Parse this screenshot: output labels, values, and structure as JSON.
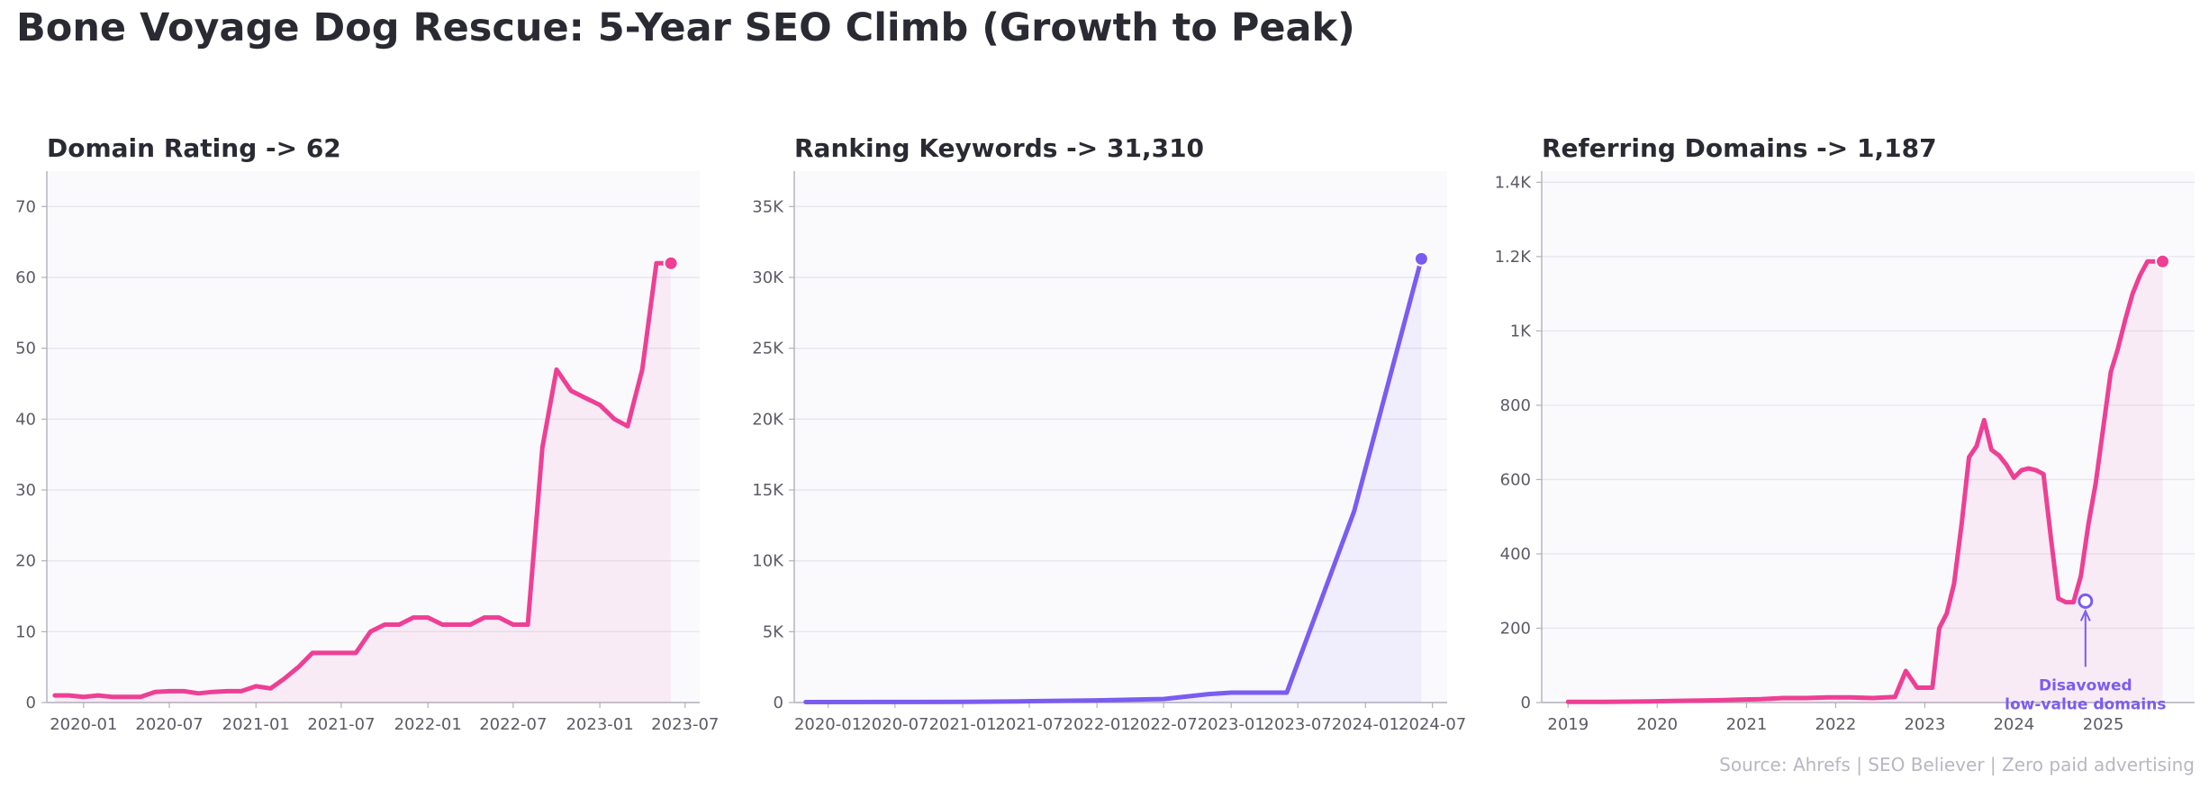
{
  "title": "Bone Voyage Dog Rescue: 5-Year SEO Climb (Growth to Peak)",
  "footer": "Source: Ahrefs  |  SEO Believer  |  Zero paid advertising",
  "colors": {
    "pink": "#ee3f95",
    "purple": "#7b5cf0",
    "panel_bg": "#fafafd",
    "grid": "#e6e6ee"
  },
  "chart_data": [
    {
      "type": "area",
      "title": "Domain Rating  ->  62",
      "color": "pink",
      "x_type": "date",
      "xlim": [
        "2019-10-15",
        "2023-08-01"
      ],
      "ylim": [
        0,
        75
      ],
      "xticks": [
        {
          "value": "2020-01-01",
          "label": "2020-01"
        },
        {
          "value": "2020-07-01",
          "label": "2020-07"
        },
        {
          "value": "2021-01-01",
          "label": "2021-01"
        },
        {
          "value": "2021-07-01",
          "label": "2021-07"
        },
        {
          "value": "2022-01-01",
          "label": "2022-01"
        },
        {
          "value": "2022-07-01",
          "label": "2022-07"
        },
        {
          "value": "2023-01-01",
          "label": "2023-01"
        },
        {
          "value": "2023-07-01",
          "label": "2023-07"
        }
      ],
      "yticks": [
        {
          "value": 0,
          "label": "0"
        },
        {
          "value": 10,
          "label": "10"
        },
        {
          "value": 20,
          "label": "20"
        },
        {
          "value": 30,
          "label": "30"
        },
        {
          "value": 40,
          "label": "40"
        },
        {
          "value": 50,
          "label": "50"
        },
        {
          "value": 60,
          "label": "60"
        },
        {
          "value": 70,
          "label": "70"
        }
      ],
      "x": [
        "2019-11-01",
        "2019-12-01",
        "2020-01-01",
        "2020-02-01",
        "2020-03-01",
        "2020-04-01",
        "2020-05-01",
        "2020-06-01",
        "2020-07-01",
        "2020-08-01",
        "2020-09-01",
        "2020-10-01",
        "2020-11-01",
        "2020-12-01",
        "2021-01-01",
        "2021-02-01",
        "2021-03-01",
        "2021-04-01",
        "2021-05-01",
        "2021-06-01",
        "2021-07-01",
        "2021-08-01",
        "2021-09-01",
        "2021-10-01",
        "2021-11-01",
        "2021-12-01",
        "2022-01-01",
        "2022-02-01",
        "2022-03-01",
        "2022-04-01",
        "2022-05-01",
        "2022-06-01",
        "2022-07-01",
        "2022-08-01",
        "2022-09-01",
        "2022-10-01",
        "2022-11-01",
        "2022-12-01",
        "2023-01-01",
        "2023-02-01",
        "2023-03-01",
        "2023-04-01",
        "2023-05-01",
        "2023-06-01"
      ],
      "y": [
        1,
        1,
        0.8,
        1,
        0.8,
        0.8,
        0.8,
        1.5,
        1.6,
        1.6,
        1.3,
        1.5,
        1.6,
        1.6,
        2.3,
        2,
        3.3,
        5,
        7,
        7,
        7,
        7,
        10,
        11,
        11,
        12,
        12,
        11,
        11,
        11,
        12,
        12,
        11,
        11,
        36,
        47,
        44,
        43,
        42,
        40,
        39,
        47,
        62,
        62
      ],
      "last_marker": {
        "x": "2023-06-01",
        "y": 62
      }
    },
    {
      "type": "area",
      "title": "Ranking Keywords  ->  31,310",
      "color": "purple",
      "x_type": "date",
      "xlim": [
        "2019-10-01",
        "2024-08-10"
      ],
      "ylim": [
        0,
        37500
      ],
      "xticks": [
        {
          "value": "2020-01-01",
          "label": "2020-01"
        },
        {
          "value": "2020-07-01",
          "label": "2020-07"
        },
        {
          "value": "2021-01-01",
          "label": "2021-01"
        },
        {
          "value": "2021-07-01",
          "label": "2021-07"
        },
        {
          "value": "2022-01-01",
          "label": "2022-01"
        },
        {
          "value": "2022-07-01",
          "label": "2022-07"
        },
        {
          "value": "2023-01-01",
          "label": "2023-01"
        },
        {
          "value": "2023-07-01",
          "label": "2023-07"
        },
        {
          "value": "2024-01-01",
          "label": "2024-01"
        },
        {
          "value": "2024-07-01",
          "label": "2024-07"
        }
      ],
      "yticks": [
        {
          "value": 0,
          "label": "0"
        },
        {
          "value": 5000,
          "label": "5K"
        },
        {
          "value": 10000,
          "label": "10K"
        },
        {
          "value": 15000,
          "label": "15K"
        },
        {
          "value": 20000,
          "label": "20K"
        },
        {
          "value": 25000,
          "label": "25K"
        },
        {
          "value": 30000,
          "label": "30K"
        },
        {
          "value": 35000,
          "label": "35K"
        }
      ],
      "x": [
        "2019-11-01",
        "2020-06-01",
        "2021-01-01",
        "2021-06-01",
        "2022-01-01",
        "2022-07-01",
        "2022-11-01",
        "2023-01-01",
        "2023-06-01",
        "2023-12-01",
        "2024-06-01"
      ],
      "y": [
        30,
        40,
        50,
        80,
        150,
        250,
        600,
        700,
        700,
        13500,
        31310
      ],
      "last_marker": {
        "x": "2024-06-01",
        "y": 31310
      }
    },
    {
      "type": "area",
      "title": "Referring Domains  ->  1,187",
      "color": "pink",
      "x_type": "date",
      "xlim": [
        "2018-09-15",
        "2026-01-10"
      ],
      "ylim": [
        0,
        1430
      ],
      "xticks": [
        {
          "value": "2019-01-01",
          "label": "2019"
        },
        {
          "value": "2020-01-01",
          "label": "2020"
        },
        {
          "value": "2021-01-01",
          "label": "2021"
        },
        {
          "value": "2022-01-01",
          "label": "2022"
        },
        {
          "value": "2023-01-01",
          "label": "2023"
        },
        {
          "value": "2024-01-01",
          "label": "2024"
        },
        {
          "value": "2025-01-01",
          "label": "2025"
        }
      ],
      "yticks": [
        {
          "value": 0,
          "label": "0"
        },
        {
          "value": 200,
          "label": "200"
        },
        {
          "value": 400,
          "label": "400"
        },
        {
          "value": 600,
          "label": "600"
        },
        {
          "value": 800,
          "label": "800"
        },
        {
          "value": 1000,
          "label": "1K"
        },
        {
          "value": 1200,
          "label": "1.2K"
        },
        {
          "value": 1400,
          "label": "1.4K"
        }
      ],
      "x": [
        "2019-01-01",
        "2019-06-01",
        "2019-12-01",
        "2020-03-01",
        "2020-06-01",
        "2020-09-01",
        "2020-12-01",
        "2021-03-01",
        "2021-06-01",
        "2021-09-01",
        "2021-12-01",
        "2022-03-01",
        "2022-06-01",
        "2022-09-01",
        "2022-10-15",
        "2022-12-01",
        "2023-02-01",
        "2023-03-01",
        "2023-04-01",
        "2023-05-01",
        "2023-06-01",
        "2023-07-01",
        "2023-08-01",
        "2023-09-01",
        "2023-10-01",
        "2023-11-01",
        "2023-12-01",
        "2024-01-01",
        "2024-02-01",
        "2024-03-01",
        "2024-04-01",
        "2024-05-01",
        "2024-06-01",
        "2024-07-01",
        "2024-08-01",
        "2024-09-01",
        "2024-10-01",
        "2024-11-01",
        "2024-12-01",
        "2025-01-01",
        "2025-02-01",
        "2025-03-01",
        "2025-04-01",
        "2025-05-01",
        "2025-06-01",
        "2025-07-01",
        "2025-08-01",
        "2025-09-01"
      ],
      "y": [
        2,
        2,
        3,
        4,
        5,
        6,
        8,
        9,
        12,
        12,
        14,
        14,
        12,
        15,
        85,
        40,
        40,
        200,
        240,
        320,
        480,
        660,
        690,
        760,
        680,
        665,
        640,
        605,
        625,
        630,
        625,
        615,
        440,
        280,
        270,
        270,
        340,
        480,
        590,
        740,
        890,
        950,
        1030,
        1100,
        1150,
        1187,
        1187,
        1187
      ],
      "last_marker": {
        "x": "2025-09-01",
        "y": 1187
      },
      "annotation": {
        "text_line1": "Disavowed",
        "text_line2": "low-value domains",
        "point": {
          "x": "2024-10-20",
          "y": 273
        }
      }
    }
  ]
}
